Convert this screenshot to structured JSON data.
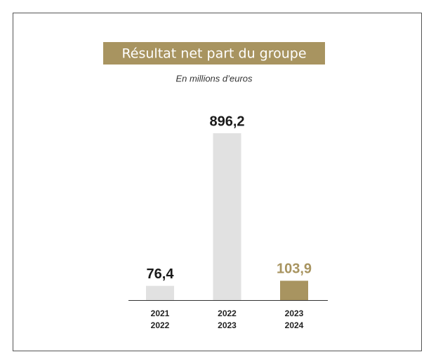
{
  "chart_data": {
    "type": "bar",
    "title": "Résultat net part du groupe",
    "subtitle": "En millions d’euros",
    "categories": [
      [
        "2021",
        "2022"
      ],
      [
        "2022",
        "2023"
      ],
      [
        "2023",
        "2024"
      ]
    ],
    "values": [
      76.4,
      896.2,
      103.9
    ],
    "value_labels": [
      "76,4",
      "896,2",
      "103,9"
    ],
    "colors": [
      "#e1e1e1",
      "#e1e1e1",
      "#a89460"
    ],
    "label_colors": [
      "#1a1a1a",
      "#1a1a1a",
      "#a89460"
    ]
  }
}
